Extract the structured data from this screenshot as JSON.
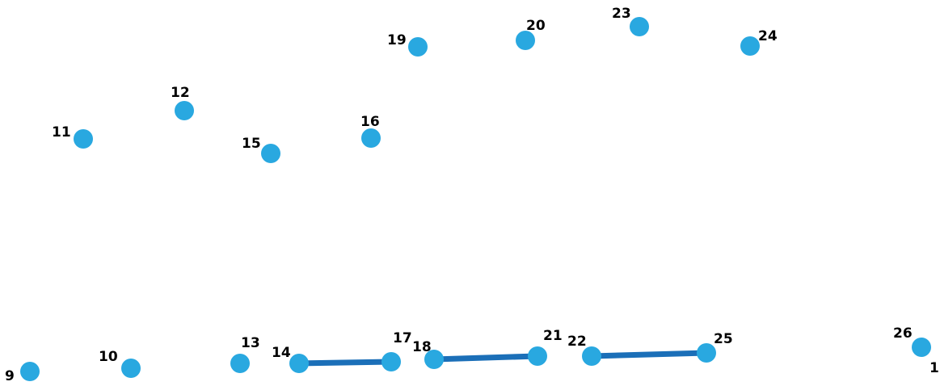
{
  "colors": {
    "dot": "#29a8e0",
    "line": "#1b6fb8",
    "label": "#000000",
    "background": "#ffffff"
  },
  "dots": [
    {
      "label": "1"
    },
    {
      "label": "9"
    },
    {
      "label": "10"
    },
    {
      "label": "11"
    },
    {
      "label": "12"
    },
    {
      "label": "13"
    },
    {
      "label": "14"
    },
    {
      "label": "15"
    },
    {
      "label": "16"
    },
    {
      "label": "17"
    },
    {
      "label": "18"
    },
    {
      "label": "19"
    },
    {
      "label": "20"
    },
    {
      "label": "21"
    },
    {
      "label": "22"
    },
    {
      "label": "23"
    },
    {
      "label": "24"
    },
    {
      "label": "25"
    },
    {
      "label": "26"
    }
  ],
  "segments": [
    {
      "from": "14",
      "to": "17"
    },
    {
      "from": "18",
      "to": "21"
    },
    {
      "from": "22",
      "to": "25"
    }
  ]
}
